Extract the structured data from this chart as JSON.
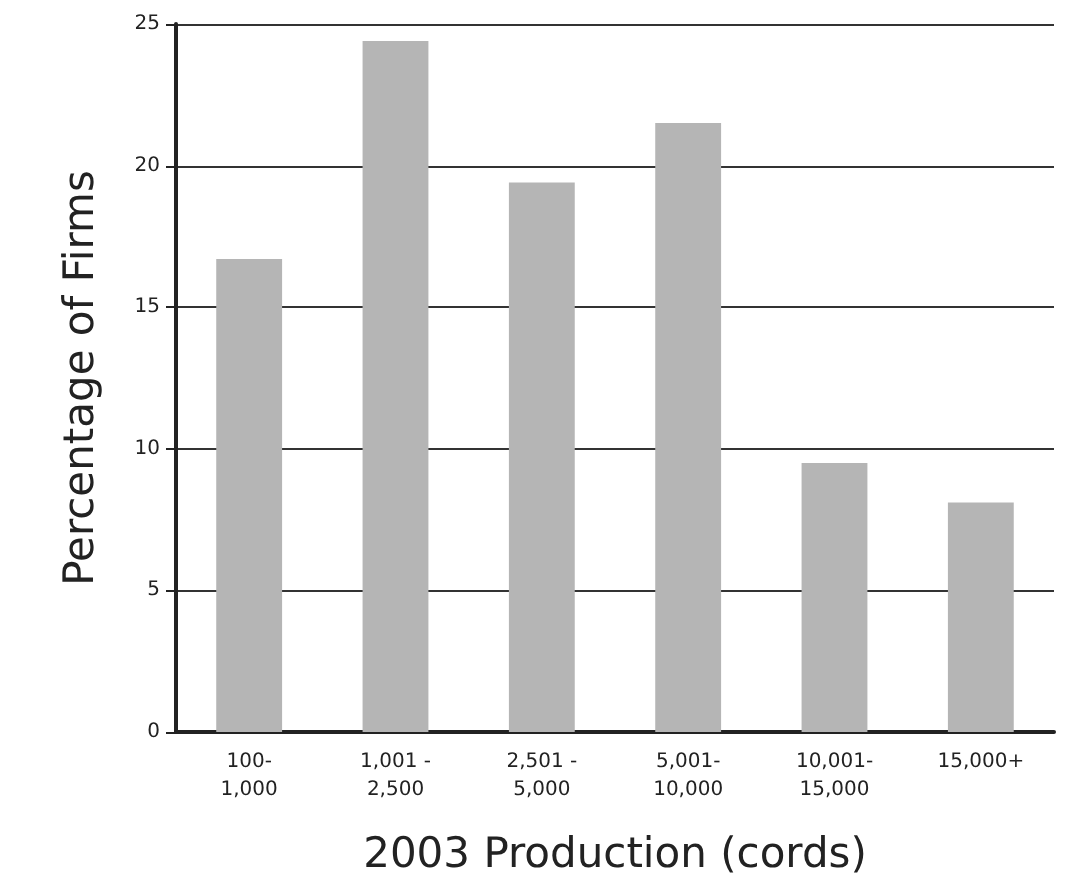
{
  "chart_data": {
    "type": "bar",
    "xlabel": "2003 Production (cords)",
    "ylabel": "Percentage of Firms",
    "categories": [
      "100-\n1,000",
      "1,001 -\n2,500",
      "2,501 -\n5,000",
      "5,001-\n10,000",
      "10,001-\n15,000",
      "15,000+"
    ],
    "values": [
      16.7,
      24.4,
      19.4,
      21.5,
      9.5,
      8.1
    ],
    "color": "#b5b5b5",
    "ylim": [
      0,
      25
    ],
    "yticks": [
      0,
      5,
      10,
      15,
      20,
      25
    ],
    "grid": "y"
  }
}
